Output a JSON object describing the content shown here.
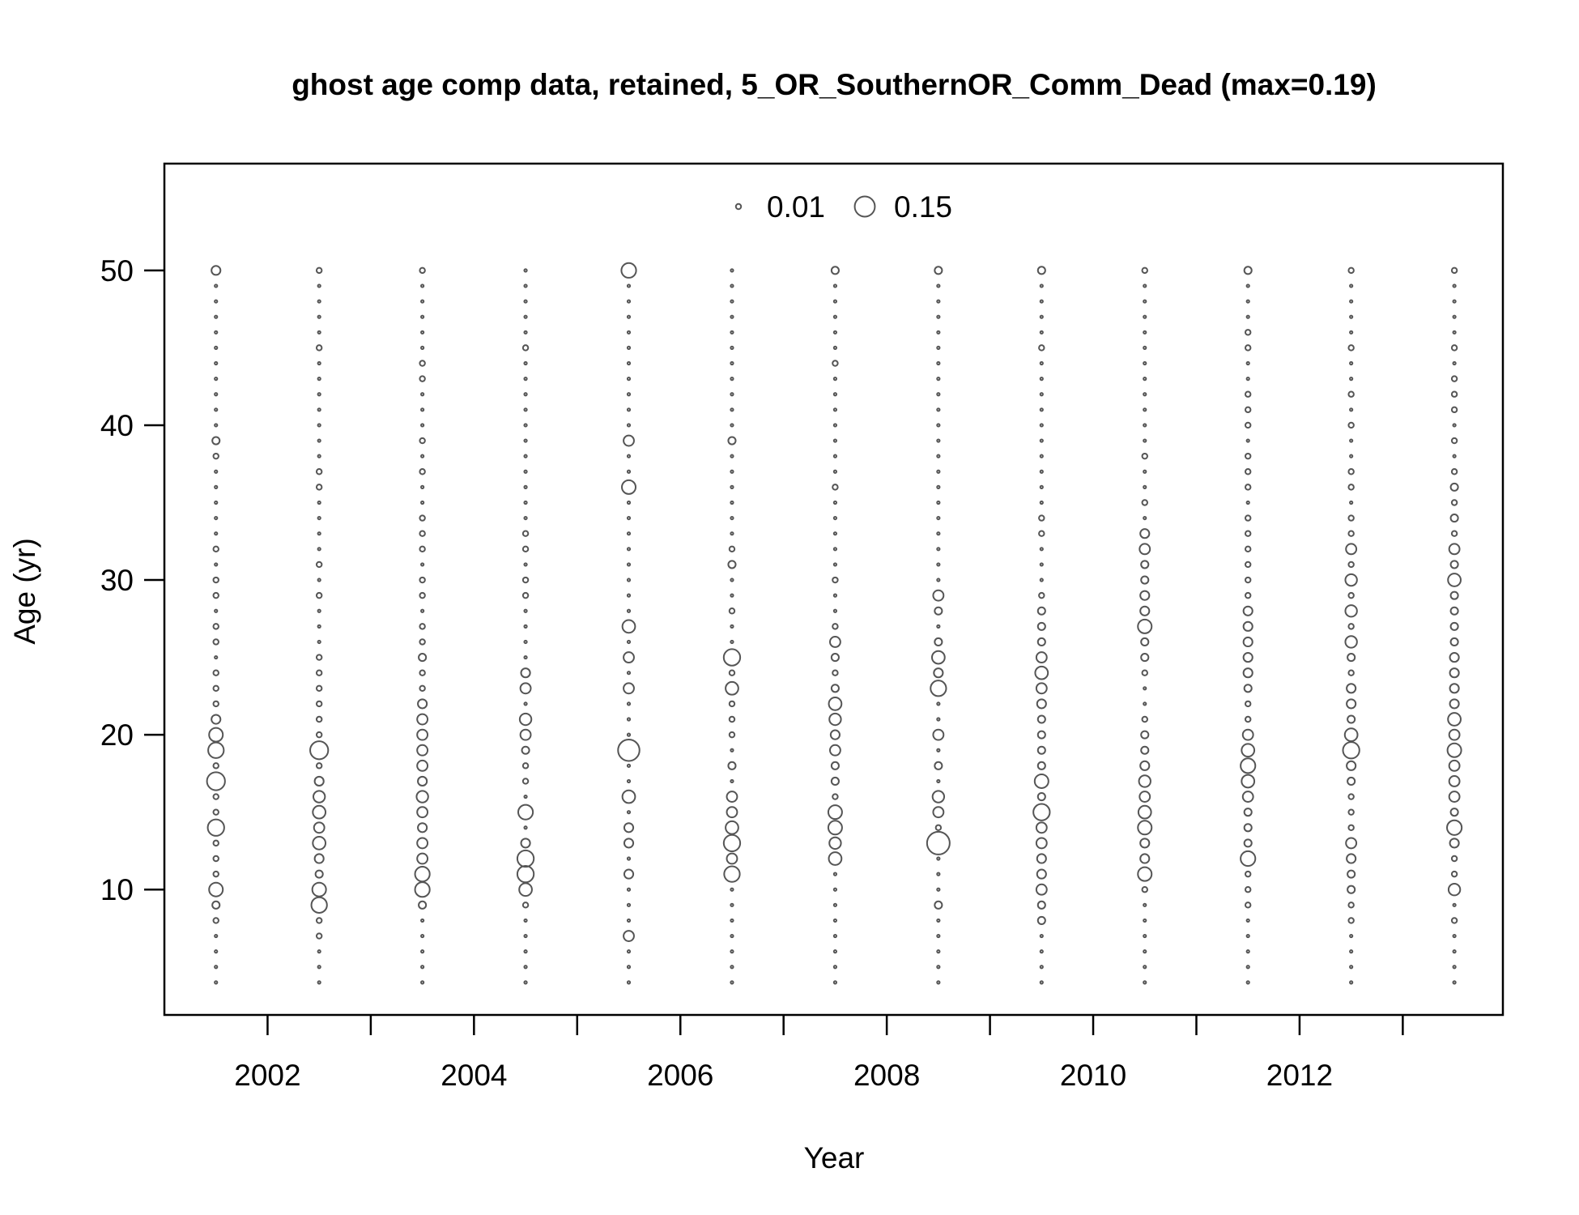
{
  "chart_data": {
    "type": "scatter",
    "subtype": "bubble",
    "title": "ghost age comp data, retained, 5_OR_SouthernOR_Comm_Dead (max=0.19)",
    "xlabel": "Year",
    "ylabel": "Age (yr)",
    "xlim": [
      2001.0,
      2013.97
    ],
    "ylim": [
      1.9,
      56.9
    ],
    "xticks": [
      2002,
      2004,
      2006,
      2008,
      2010,
      2012
    ],
    "xticks_minor": [
      2003,
      2005,
      2007,
      2009,
      2011,
      2013
    ],
    "yticks": [
      10,
      20,
      30,
      40,
      50
    ],
    "grid": false,
    "legend": {
      "position": "top",
      "entries": [
        {
          "value": 0.01,
          "label": "0.01"
        },
        {
          "value": 0.15,
          "label": "0.15"
        }
      ]
    },
    "max_value": 0.19,
    "point_color": "#555555",
    "ages": [
      4,
      5,
      6,
      7,
      8,
      9,
      10,
      11,
      12,
      13,
      14,
      15,
      16,
      17,
      18,
      19,
      20,
      21,
      22,
      23,
      24,
      25,
      26,
      27,
      28,
      29,
      30,
      31,
      32,
      33,
      34,
      35,
      36,
      37,
      38,
      39,
      40,
      41,
      42,
      43,
      44,
      45,
      46,
      47,
      48,
      49,
      50
    ],
    "series": [
      {
        "year": 2001.5,
        "values": [
          0.001,
          0.001,
          0.001,
          0.001,
          0.01,
          0.02,
          0.07,
          0.01,
          0.01,
          0.01,
          0.1,
          0.01,
          0.01,
          0.12,
          0.01,
          0.09,
          0.07,
          0.03,
          0.01,
          0.01,
          0.01,
          0.001,
          0.01,
          0.01,
          0.001,
          0.01,
          0.01,
          0.001,
          0.01,
          0.001,
          0.001,
          0.001,
          0.001,
          0.001,
          0.01,
          0.02,
          0.001,
          0.001,
          0.001,
          0.001,
          0.001,
          0.001,
          0.001,
          0.001,
          0.001,
          0.001,
          0.03
        ]
      },
      {
        "year": 2002.5,
        "values": [
          0.001,
          0.001,
          0.001,
          0.01,
          0.01,
          0.09,
          0.07,
          0.02,
          0.03,
          0.06,
          0.04,
          0.06,
          0.05,
          0.03,
          0.01,
          0.12,
          0.01,
          0.01,
          0.01,
          0.01,
          0.01,
          0.01,
          0.001,
          0.001,
          0.001,
          0.01,
          0.001,
          0.01,
          0.001,
          0.001,
          0.001,
          0.001,
          0.01,
          0.01,
          0.001,
          0.001,
          0.001,
          0.001,
          0.001,
          0.001,
          0.001,
          0.01,
          0.001,
          0.001,
          0.001,
          0.001,
          0.01
        ]
      },
      {
        "year": 2003.5,
        "values": [
          0.001,
          0.001,
          0.001,
          0.001,
          0.001,
          0.02,
          0.08,
          0.08,
          0.04,
          0.04,
          0.03,
          0.04,
          0.05,
          0.03,
          0.04,
          0.04,
          0.04,
          0.04,
          0.03,
          0.01,
          0.01,
          0.02,
          0.01,
          0.01,
          0.001,
          0.01,
          0.01,
          0.001,
          0.01,
          0.01,
          0.01,
          0.001,
          0.001,
          0.01,
          0.001,
          0.01,
          0.001,
          0.001,
          0.001,
          0.01,
          0.01,
          0.001,
          0.001,
          0.001,
          0.001,
          0.001,
          0.01
        ]
      },
      {
        "year": 2004.5,
        "values": [
          0.001,
          0.001,
          0.001,
          0.001,
          0.001,
          0.01,
          0.06,
          0.1,
          0.1,
          0.03,
          0.001,
          0.08,
          0.001,
          0.01,
          0.01,
          0.02,
          0.04,
          0.05,
          0.001,
          0.04,
          0.03,
          0.001,
          0.001,
          0.001,
          0.001,
          0.01,
          0.01,
          0.001,
          0.01,
          0.01,
          0.001,
          0.001,
          0.001,
          0.001,
          0.001,
          0.001,
          0.001,
          0.001,
          0.001,
          0.001,
          0.001,
          0.01,
          0.001,
          0.001,
          0.001,
          0.001,
          0.001
        ]
      },
      {
        "year": 2005.5,
        "values": [
          0.001,
          0.001,
          0.001,
          0.04,
          0.001,
          0.001,
          0.001,
          0.03,
          0.001,
          0.03,
          0.03,
          0.001,
          0.06,
          0.001,
          0.001,
          0.17,
          0.001,
          0.001,
          0.001,
          0.04,
          0.001,
          0.04,
          0.001,
          0.06,
          0.001,
          0.001,
          0.001,
          0.001,
          0.001,
          0.001,
          0.001,
          0.001,
          0.07,
          0.001,
          0.001,
          0.04,
          0.001,
          0.001,
          0.001,
          0.001,
          0.001,
          0.001,
          0.001,
          0.001,
          0.001,
          0.001,
          0.08
        ]
      },
      {
        "year": 2006.5,
        "values": [
          0.001,
          0.001,
          0.001,
          0.001,
          0.001,
          0.001,
          0.001,
          0.09,
          0.04,
          0.1,
          0.06,
          0.04,
          0.04,
          0.001,
          0.02,
          0.001,
          0.01,
          0.01,
          0.01,
          0.06,
          0.01,
          0.1,
          0.001,
          0.001,
          0.01,
          0.001,
          0.001,
          0.02,
          0.01,
          0.001,
          0.001,
          0.001,
          0.001,
          0.001,
          0.001,
          0.02,
          0.001,
          0.001,
          0.001,
          0.001,
          0.001,
          0.001,
          0.001,
          0.001,
          0.001,
          0.001,
          0.001
        ]
      },
      {
        "year": 2007.5,
        "values": [
          0.001,
          0.001,
          0.001,
          0.001,
          0.001,
          0.001,
          0.001,
          0.001,
          0.06,
          0.05,
          0.07,
          0.07,
          0.01,
          0.02,
          0.02,
          0.04,
          0.03,
          0.05,
          0.06,
          0.02,
          0.01,
          0.02,
          0.04,
          0.01,
          0.001,
          0.001,
          0.01,
          0.001,
          0.001,
          0.001,
          0.001,
          0.001,
          0.01,
          0.001,
          0.001,
          0.001,
          0.001,
          0.001,
          0.001,
          0.001,
          0.01,
          0.001,
          0.001,
          0.001,
          0.001,
          0.001,
          0.02
        ]
      },
      {
        "year": 2008.5,
        "values": [
          0.001,
          0.001,
          0.001,
          0.001,
          0.001,
          0.02,
          0.001,
          0.001,
          0.001,
          0.19,
          0.01,
          0.04,
          0.05,
          0.001,
          0.02,
          0.001,
          0.04,
          0.001,
          0.001,
          0.09,
          0.03,
          0.06,
          0.02,
          0.001,
          0.02,
          0.04,
          0.001,
          0.001,
          0.001,
          0.001,
          0.001,
          0.001,
          0.001,
          0.001,
          0.001,
          0.001,
          0.001,
          0.001,
          0.001,
          0.001,
          0.001,
          0.001,
          0.001,
          0.001,
          0.001,
          0.001,
          0.02
        ]
      },
      {
        "year": 2009.5,
        "values": [
          0.001,
          0.001,
          0.001,
          0.001,
          0.02,
          0.02,
          0.04,
          0.03,
          0.03,
          0.04,
          0.04,
          0.1,
          0.02,
          0.07,
          0.02,
          0.02,
          0.02,
          0.02,
          0.03,
          0.04,
          0.06,
          0.04,
          0.02,
          0.02,
          0.02,
          0.01,
          0.001,
          0.001,
          0.001,
          0.01,
          0.01,
          0.001,
          0.001,
          0.001,
          0.001,
          0.001,
          0.001,
          0.001,
          0.001,
          0.001,
          0.001,
          0.01,
          0.001,
          0.001,
          0.001,
          0.001,
          0.02
        ]
      },
      {
        "year": 2010.5,
        "values": [
          0.001,
          0.001,
          0.001,
          0.001,
          0.001,
          0.001,
          0.01,
          0.07,
          0.03,
          0.03,
          0.07,
          0.06,
          0.04,
          0.05,
          0.03,
          0.02,
          0.02,
          0.01,
          0.001,
          0.001,
          0.01,
          0.02,
          0.02,
          0.07,
          0.03,
          0.03,
          0.02,
          0.02,
          0.04,
          0.03,
          0.001,
          0.01,
          0.001,
          0.001,
          0.01,
          0.001,
          0.001,
          0.001,
          0.001,
          0.001,
          0.001,
          0.001,
          0.001,
          0.001,
          0.001,
          0.001,
          0.01
        ]
      },
      {
        "year": 2011.5,
        "values": [
          0.001,
          0.001,
          0.001,
          0.001,
          0.001,
          0.01,
          0.01,
          0.01,
          0.08,
          0.02,
          0.02,
          0.02,
          0.04,
          0.06,
          0.08,
          0.06,
          0.04,
          0.01,
          0.01,
          0.02,
          0.03,
          0.03,
          0.03,
          0.03,
          0.03,
          0.01,
          0.01,
          0.01,
          0.01,
          0.01,
          0.01,
          0.001,
          0.01,
          0.01,
          0.01,
          0.001,
          0.01,
          0.01,
          0.01,
          0.001,
          0.001,
          0.01,
          0.01,
          0.001,
          0.001,
          0.001,
          0.02
        ]
      },
      {
        "year": 2012.5,
        "values": [
          0.001,
          0.001,
          0.001,
          0.001,
          0.01,
          0.01,
          0.02,
          0.02,
          0.03,
          0.04,
          0.01,
          0.01,
          0.01,
          0.02,
          0.03,
          0.1,
          0.06,
          0.02,
          0.03,
          0.03,
          0.01,
          0.02,
          0.05,
          0.01,
          0.05,
          0.01,
          0.05,
          0.01,
          0.04,
          0.01,
          0.01,
          0.001,
          0.01,
          0.01,
          0.001,
          0.001,
          0.01,
          0.001,
          0.01,
          0.001,
          0.001,
          0.01,
          0.001,
          0.001,
          0.001,
          0.001,
          0.01
        ]
      },
      {
        "year": 2013.5,
        "values": [
          0.001,
          0.001,
          0.001,
          0.001,
          0.01,
          0.001,
          0.05,
          0.01,
          0.01,
          0.03,
          0.08,
          0.02,
          0.04,
          0.04,
          0.04,
          0.07,
          0.04,
          0.06,
          0.03,
          0.03,
          0.03,
          0.03,
          0.02,
          0.02,
          0.02,
          0.02,
          0.06,
          0.02,
          0.04,
          0.01,
          0.02,
          0.01,
          0.02,
          0.01,
          0.001,
          0.01,
          0.001,
          0.01,
          0.01,
          0.01,
          0.001,
          0.01,
          0.001,
          0.001,
          0.001,
          0.001,
          0.01
        ]
      }
    ]
  }
}
